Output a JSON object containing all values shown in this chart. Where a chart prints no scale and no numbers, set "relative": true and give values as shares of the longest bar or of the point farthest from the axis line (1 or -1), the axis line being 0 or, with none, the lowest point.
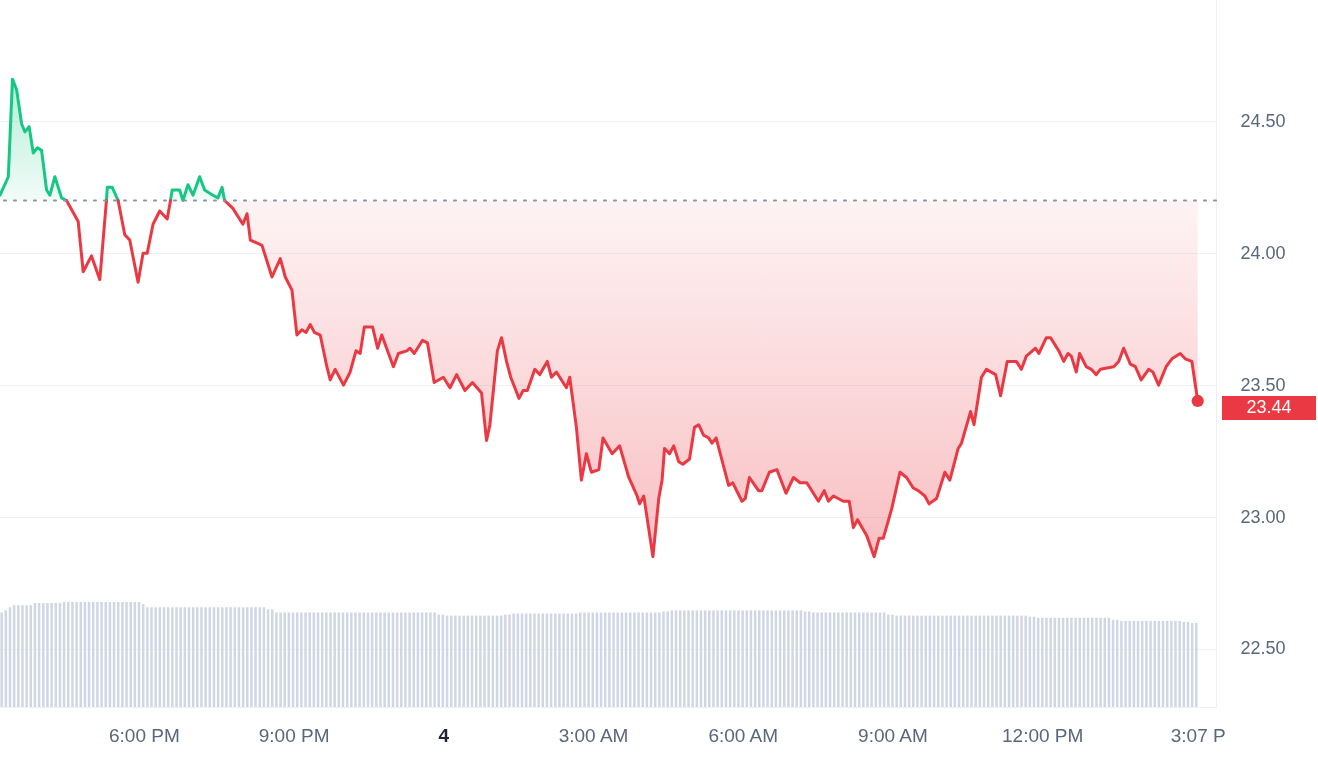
{
  "chart_data": [
    {
      "type": "line",
      "xlim": [
        "--01-03T15:07",
        "--01-04T15:29"
      ],
      "xticks": [
        {
          "value": "--01-03T18:00",
          "label": "6:00 PM"
        },
        {
          "value": "--01-03T21:00",
          "label": "9:00 PM"
        },
        {
          "value": "--01-04T00:00",
          "label": "4"
        },
        {
          "value": "--01-04T03:00",
          "label": "3:00 AM"
        },
        {
          "value": "--01-04T06:00",
          "label": "6:00 AM"
        },
        {
          "value": "--01-04T09:00",
          "label": "9:00 AM"
        },
        {
          "value": "--01-04T12:00",
          "label": "12:00 PM"
        },
        {
          "value": "--01-04T15:07",
          "label": "3:07 P"
        }
      ],
      "ylim": [
        22.28,
        24.96
      ],
      "yticks": [
        {
          "value": 22.5,
          "label": "22.50"
        },
        {
          "value": 23,
          "label": "23.00"
        },
        {
          "value": 23.5,
          "label": "23.50"
        },
        {
          "value": 24,
          "label": "24.00"
        },
        {
          "value": 24.5,
          "label": "24.50"
        }
      ],
      "grid": "y",
      "ref_lines": [
        {
          "axis": "y",
          "value": 24.2,
          "color": "#8a93a6",
          "line_style": "dotted"
        }
      ],
      "annotations": [
        {
          "text": "23.44",
          "x": "--01-04T15:07",
          "y": 23.44
        }
      ],
      "series": [
        {
          "color": "#16c784",
          "x": [
            "--01-03T15:07",
            "--01-03T15:17",
            "--01-03T15:22",
            "--01-03T15:27",
            "--01-03T15:33",
            "--01-03T15:37",
            "--01-03T15:42",
            "--01-03T15:47",
            "--01-03T15:52",
            "--01-03T15:57",
            "--01-03T16:03",
            "--01-03T16:07",
            "--01-03T16:13",
            "--01-03T16:21",
            "--01-03T16:27",
            "--01-03T16:51",
            "--01-03T17:15",
            "--01-03T17:16",
            "--01-03T17:22",
            "--01-03T17:29",
            "--01-03T18:00",
            "--01-03T18:32",
            "--01-03T18:34",
            "--01-03T18:43",
            "--01-03T18:47",
            "--01-03T18:53",
            "--01-03T18:59",
            "--01-03T19:07",
            "--01-03T19:13",
            "--01-03T19:23",
            "--01-03T19:29",
            "--01-03T19:34",
            "--01-03T19:37"
          ],
          "values": [
            24.22,
            24.29,
            24.66,
            24.62,
            24.49,
            24.46,
            24.48,
            24.38,
            24.4,
            24.39,
            24.24,
            24.22,
            24.29,
            24.21,
            24.2,
            null,
            24.2,
            24.25,
            24.25,
            24.2,
            null,
            24.2,
            24.24,
            24.24,
            24.2,
            24.26,
            24.22,
            24.29,
            24.24,
            24.22,
            24.21,
            24.25,
            24.2
          ],
          "lower": [
            24.2,
            24.2,
            24.2,
            24.2,
            24.2,
            24.2,
            24.2,
            24.2,
            24.2,
            24.2,
            24.2,
            24.2,
            24.2,
            24.2,
            24.2,
            null,
            24.2,
            24.2,
            24.2,
            24.2,
            null,
            24.2,
            24.2,
            24.2,
            24.2,
            24.2,
            24.2,
            24.2,
            24.2,
            24.2,
            24.2,
            24.2,
            24.2
          ],
          "upper": [
            24.22,
            24.29,
            24.66,
            24.62,
            24.49,
            24.46,
            24.48,
            24.38,
            24.4,
            24.39,
            24.24,
            24.22,
            24.29,
            24.21,
            24.2,
            null,
            24.2,
            24.25,
            24.25,
            24.2,
            null,
            24.2,
            24.24,
            24.24,
            24.2,
            24.26,
            24.22,
            24.29,
            24.24,
            24.22,
            24.21,
            24.25,
            24.2
          ]
        },
        {
          "color": "#ea3943",
          "x": [
            "--01-03T16:27",
            "--01-03T16:41",
            "--01-03T16:47",
            "--01-03T16:57",
            "--01-03T17:07",
            "--01-03T17:15",
            "--01-03T17:22",
            "--01-03T17:29",
            "--01-03T17:37",
            "--01-03T17:43",
            "--01-03T17:53",
            "--01-03T17:59",
            "--01-03T18:04",
            "--01-03T18:11",
            "--01-03T18:19",
            "--01-03T18:28",
            "--01-03T18:32",
            "--01-03T19:00",
            "--01-03T19:37",
            "--01-03T19:47",
            "--01-03T19:59",
            "--01-03T20:04",
            "--01-03T20:08",
            "--01-03T20:22",
            "--01-03T20:34",
            "--01-03T20:44",
            "--01-03T20:50",
            "--01-03T20:58",
            "--01-03T21:04",
            "--01-03T21:10",
            "--01-03T21:15",
            "--01-03T21:20",
            "--01-03T21:25",
            "--01-03T21:32",
            "--01-03T21:40",
            "--01-03T21:44",
            "--01-03T21:50",
            "--01-03T22:00",
            "--01-03T22:08",
            "--01-03T22:15",
            "--01-03T22:20",
            "--01-03T22:25",
            "--01-03T22:35",
            "--01-03T22:41",
            "--01-03T22:46",
            "--01-03T23:00",
            "--01-03T23:06",
            "--01-03T23:16",
            "--01-03T23:20",
            "--01-03T23:25",
            "--01-03T23:35",
            "--01-03T23:41",
            "--01-03T23:49",
            "--01-04T00:00",
            "--01-04T00:08",
            "--01-04T00:16",
            "--01-04T00:26",
            "--01-04T00:35",
            "--01-04T00:46",
            "--01-04T00:52",
            "--01-04T00:56",
            "--01-04T01:05",
            "--01-04T01:10",
            "--01-04T01:16",
            "--01-04T01:21",
            "--01-04T01:31",
            "--01-04T01:36",
            "--01-04T01:41",
            "--01-04T01:50",
            "--01-04T01:56",
            "--01-04T02:05",
            "--01-04T02:10",
            "--01-04T02:16",
            "--01-04T02:28",
            "--01-04T02:32",
            "--01-04T02:40",
            "--01-04T02:46",
            "--01-04T02:52",
            "--01-04T02:58",
            "--01-04T03:07",
            "--01-04T03:12",
            "--01-04T03:23",
            "--01-04T03:32",
            "--01-04T03:43",
            "--01-04T03:53",
            "--01-04T03:56",
            "--01-04T04:01",
            "--01-04T04:12",
            "--01-04T04:19",
            "--01-04T04:23",
            "--01-04T04:26",
            "--01-04T04:32",
            "--01-04T04:37",
            "--01-04T04:43",
            "--01-04T04:48",
            "--01-04T04:56",
            "--01-04T05:02",
            "--01-04T05:07",
            "--01-04T05:13",
            "--01-04T05:19",
            "--01-04T05:23",
            "--01-04T05:28",
            "--01-04T05:43",
            "--01-04T05:48",
            "--01-04T05:59",
            "--01-04T06:03",
            "--01-04T06:08",
            "--01-04T06:19",
            "--01-04T06:23",
            "--01-04T06:32",
            "--01-04T06:41",
            "--01-04T06:52",
            "--01-04T07:01",
            "--01-04T07:09",
            "--01-04T07:17",
            "--01-04T07:31",
            "--01-04T07:38",
            "--01-04T07:43",
            "--01-04T07:49",
            "--01-04T08:01",
            "--01-04T08:08",
            "--01-04T08:13",
            "--01-04T08:18",
            "--01-04T08:29",
            "--01-04T08:38",
            "--01-04T08:44",
            "--01-04T08:49",
            "--01-04T08:59",
            "--01-04T09:09",
            "--01-04T09:17",
            "--01-04T09:25",
            "--01-04T09:31",
            "--01-04T09:39",
            "--01-04T09:44",
            "--01-04T09:53",
            "--01-04T10:03",
            "--01-04T10:09",
            "--01-04T10:19",
            "--01-04T10:23",
            "--01-04T10:34",
            "--01-04T10:38",
            "--01-04T10:47",
            "--01-04T10:53",
            "--01-04T11:04",
            "--01-04T11:10",
            "--01-04T11:18",
            "--01-04T11:29",
            "--01-04T11:35",
            "--01-04T11:41",
            "--01-04T11:52",
            "--01-04T11:56",
            "--01-04T12:05",
            "--01-04T12:10",
            "--01-04T12:20",
            "--01-04T12:26",
            "--01-04T12:31",
            "--01-04T12:35",
            "--01-04T12:41",
            "--01-04T12:45",
            "--01-04T12:53",
            "--01-04T12:59",
            "--01-04T13:05",
            "--01-04T13:10",
            "--01-04T13:26",
            "--01-04T13:32",
            "--01-04T13:38",
            "--01-04T13:46",
            "--01-04T13:52",
            "--01-04T13:59",
            "--01-04T14:08",
            "--01-04T14:13",
            "--01-04T14:20",
            "--01-04T14:29",
            "--01-04T14:36",
            "--01-04T14:46",
            "--01-04T14:52",
            "--01-04T15:00",
            "--01-04T15:07"
          ],
          "values": [
            24.2,
            24.12,
            23.93,
            23.99,
            23.9,
            24.2,
            null,
            24.2,
            24.07,
            24.05,
            23.89,
            24.0,
            24.0,
            24.11,
            24.16,
            24.13,
            24.2,
            null,
            24.2,
            24.17,
            24.11,
            24.15,
            24.05,
            24.03,
            23.91,
            23.98,
            23.91,
            23.86,
            23.69,
            23.71,
            23.7,
            23.73,
            23.7,
            23.69,
            23.57,
            23.52,
            23.56,
            23.5,
            23.55,
            23.63,
            23.62,
            23.72,
            23.72,
            23.64,
            23.69,
            23.57,
            23.62,
            23.63,
            23.64,
            23.62,
            23.67,
            23.66,
            23.51,
            23.53,
            23.49,
            23.54,
            23.48,
            23.51,
            23.47,
            23.29,
            23.35,
            23.63,
            23.68,
            23.59,
            23.53,
            23.45,
            23.48,
            23.48,
            23.56,
            23.54,
            23.59,
            23.53,
            23.55,
            23.49,
            23.53,
            23.34,
            23.14,
            23.24,
            23.17,
            23.18,
            23.3,
            23.24,
            23.27,
            23.15,
            23.08,
            23.05,
            23.08,
            22.85,
            23.07,
            23.14,
            23.26,
            23.24,
            23.27,
            23.21,
            23.2,
            23.22,
            23.34,
            23.35,
            23.31,
            23.3,
            23.28,
            23.3,
            23.12,
            23.13,
            23.06,
            23.07,
            23.15,
            23.1,
            23.1,
            23.17,
            23.18,
            23.09,
            23.15,
            23.13,
            23.13,
            23.06,
            23.1,
            23.06,
            23.08,
            23.06,
            23.06,
            22.96,
            22.99,
            22.93,
            22.85,
            22.92,
            22.92,
            23.03,
            23.17,
            23.15,
            23.11,
            23.1,
            23.08,
            23.05,
            23.07,
            23.17,
            23.14,
            23.26,
            23.28,
            23.4,
            23.35,
            23.53,
            23.56,
            23.54,
            23.46,
            23.59,
            23.59,
            23.56,
            23.61,
            23.64,
            23.62,
            23.68,
            23.68,
            23.63,
            23.59,
            23.62,
            23.61,
            23.55,
            23.62,
            23.57,
            23.56,
            23.54,
            23.56,
            23.57,
            23.59,
            23.64,
            23.58,
            23.57,
            23.52,
            23.56,
            23.55,
            23.5,
            23.57,
            23.6,
            23.62,
            23.6,
            23.59,
            23.44
          ],
          "lower": [
            null,
            null,
            null,
            null,
            null,
            null,
            null,
            null,
            null,
            null,
            null,
            null,
            null,
            null,
            null,
            null,
            null,
            null,
            24.2,
            24.17,
            24.11,
            24.15,
            24.05,
            24.03,
            23.91,
            23.98,
            23.91,
            23.86,
            23.69,
            23.71,
            23.7,
            23.73,
            23.7,
            23.69,
            23.57,
            23.52,
            23.56,
            23.5,
            23.55,
            23.63,
            23.62,
            23.72,
            23.72,
            23.64,
            23.69,
            23.57,
            23.62,
            23.63,
            23.64,
            23.62,
            23.67,
            23.66,
            23.51,
            23.53,
            23.49,
            23.54,
            23.48,
            23.51,
            23.47,
            23.29,
            23.35,
            23.63,
            23.68,
            23.59,
            23.53,
            23.45,
            23.48,
            23.48,
            23.56,
            23.54,
            23.59,
            23.53,
            23.55,
            23.49,
            23.53,
            23.34,
            23.14,
            23.24,
            23.17,
            23.18,
            23.3,
            23.24,
            23.27,
            23.15,
            23.08,
            23.05,
            23.08,
            22.85,
            23.07,
            23.14,
            23.26,
            23.24,
            23.27,
            23.21,
            23.2,
            23.22,
            23.34,
            23.35,
            23.31,
            23.3,
            23.28,
            23.3,
            23.12,
            23.13,
            23.06,
            23.07,
            23.15,
            23.1,
            23.1,
            23.17,
            23.18,
            23.09,
            23.15,
            23.13,
            23.13,
            23.06,
            23.1,
            23.06,
            23.08,
            23.06,
            23.06,
            22.96,
            22.99,
            22.93,
            22.85,
            22.92,
            22.92,
            23.03,
            23.17,
            23.15,
            23.11,
            23.1,
            23.08,
            23.05,
            23.07,
            23.17,
            23.14,
            23.26,
            23.28,
            23.4,
            23.35,
            23.53,
            23.56,
            23.54,
            23.46,
            23.59,
            23.59,
            23.56,
            23.61,
            23.64,
            23.62,
            23.68,
            23.68,
            23.63,
            23.59,
            23.62,
            23.61,
            23.55,
            23.62,
            23.57,
            23.56,
            23.54,
            23.56,
            23.57,
            23.59,
            23.64,
            23.58,
            23.57,
            23.52,
            23.56,
            23.55,
            23.5,
            23.57,
            23.6,
            23.62,
            23.6,
            23.59,
            23.44
          ],
          "upper": [
            null,
            null,
            null,
            null,
            null,
            null,
            null,
            null,
            null,
            null,
            null,
            null,
            null,
            null,
            null,
            null,
            null,
            null,
            24.2,
            24.2,
            24.2,
            24.2,
            24.2,
            24.2,
            24.2,
            24.2,
            24.2,
            24.2,
            24.2,
            24.2,
            24.2,
            24.2,
            24.2,
            24.2,
            24.2,
            24.2,
            24.2,
            24.2,
            24.2,
            24.2,
            24.2,
            24.2,
            24.2,
            24.2,
            24.2,
            24.2,
            24.2,
            24.2,
            24.2,
            24.2,
            24.2,
            24.2,
            24.2,
            24.2,
            24.2,
            24.2,
            24.2,
            24.2,
            24.2,
            24.2,
            24.2,
            24.2,
            24.2,
            24.2,
            24.2,
            24.2,
            24.2,
            24.2,
            24.2,
            24.2,
            24.2,
            24.2,
            24.2,
            24.2,
            24.2,
            24.2,
            24.2,
            24.2,
            24.2,
            24.2,
            24.2,
            24.2,
            24.2,
            24.2,
            24.2,
            24.2,
            24.2,
            24.2,
            24.2,
            24.2,
            24.2,
            24.2,
            24.2,
            24.2,
            24.2,
            24.2,
            24.2,
            24.2,
            24.2,
            24.2,
            24.2,
            24.2,
            24.2,
            24.2,
            24.2,
            24.2,
            24.2,
            24.2,
            24.2,
            24.2,
            24.2,
            24.2,
            24.2,
            24.2,
            24.2,
            24.2,
            24.2,
            24.2,
            24.2,
            24.2,
            24.2,
            24.2,
            24.2,
            24.2,
            24.2,
            24.2,
            24.2,
            24.2,
            24.2,
            24.2,
            24.2,
            24.2,
            24.2,
            24.2,
            24.2,
            24.2,
            24.2,
            24.2,
            24.2,
            24.2,
            24.2,
            24.2,
            24.2,
            24.2,
            24.2,
            24.2,
            24.2,
            24.2,
            24.2,
            24.2,
            24.2,
            24.2,
            24.2,
            24.2,
            24.2,
            24.2,
            24.2,
            24.2,
            24.2,
            24.2,
            24.2,
            24.2,
            24.2,
            24.2,
            24.2,
            24.2,
            24.2,
            24.2,
            24.2,
            24.2,
            24.2,
            24.2,
            24.2,
            24.2,
            24.2,
            24.2,
            24.2,
            24.2
          ]
        }
      ]
    },
    {
      "type": "bar",
      "relative": true,
      "color": "#cfd6e4",
      "categories": [
        null,
        null,
        null,
        null,
        null,
        null,
        null,
        null,
        null,
        null,
        null,
        null,
        null,
        null,
        null,
        null,
        null,
        null,
        null,
        null,
        null,
        null,
        null,
        null,
        null,
        null,
        null,
        null,
        null,
        null,
        null,
        null,
        null,
        null,
        null,
        null,
        null,
        null,
        null,
        null,
        null,
        null,
        null,
        null,
        null,
        null,
        null,
        null,
        null,
        null,
        null,
        null,
        null,
        null,
        null,
        null,
        null,
        null,
        null,
        null,
        null,
        null,
        null,
        null,
        null,
        null,
        null,
        null,
        null,
        null,
        null,
        null,
        null,
        null,
        null,
        null,
        null,
        null,
        null,
        null,
        null,
        null,
        null,
        null,
        null,
        null,
        null,
        null,
        null,
        null,
        null,
        null,
        null,
        null,
        null,
        null,
        null,
        null,
        null,
        null,
        null,
        null,
        null,
        null,
        null,
        null,
        null,
        null,
        null,
        null,
        null,
        null,
        null,
        null,
        null,
        null,
        null,
        null,
        null,
        null,
        null,
        null,
        null,
        null,
        null,
        null,
        null,
        null,
        null,
        null,
        null,
        null,
        null,
        null,
        null,
        null,
        null,
        null,
        null,
        null,
        null,
        null,
        null,
        null,
        null,
        null,
        null,
        null,
        null,
        null,
        null,
        null,
        null,
        null,
        null,
        null,
        null,
        null,
        null,
        null,
        null,
        null,
        null,
        null,
        null,
        null,
        null,
        null,
        null,
        null,
        null,
        null,
        null,
        null,
        null,
        null,
        null,
        null,
        null,
        null,
        null,
        null,
        null,
        null,
        null,
        null,
        null,
        null,
        null,
        null,
        null,
        null,
        null,
        null,
        null,
        null,
        null,
        null,
        null,
        null,
        null,
        null,
        null,
        null,
        null,
        null,
        null,
        null,
        null,
        null,
        null,
        null,
        null,
        null,
        null,
        null,
        null,
        null,
        null,
        null,
        null,
        null,
        null,
        null,
        null,
        null,
        null,
        null,
        null,
        null,
        null,
        null,
        null,
        null,
        null,
        null,
        null,
        null,
        null,
        null,
        null,
        null,
        null,
        null,
        null,
        null,
        null,
        null,
        null,
        null,
        null,
        null,
        null,
        null,
        null,
        null,
        null,
        null,
        null,
        null,
        null,
        null,
        null,
        null,
        null,
        null,
        null,
        null,
        null,
        null,
        null,
        null,
        null,
        null,
        null,
        null,
        null,
        null,
        null,
        null,
        null,
        null,
        null,
        null,
        null,
        null,
        null,
        null
      ],
      "values": [
        0.9,
        0.92,
        0.95,
        0.97,
        0.97,
        0.97,
        0.97,
        0.97,
        0.99,
        0.99,
        0.99,
        0.99,
        0.99,
        0.99,
        0.99,
        1,
        1,
        1,
        1,
        1,
        1,
        1,
        1,
        1,
        1,
        1,
        1,
        1,
        1,
        1,
        1,
        1,
        1,
        1,
        0.98,
        0.95,
        0.95,
        0.95,
        0.95,
        0.95,
        0.95,
        0.95,
        0.95,
        0.95,
        0.95,
        0.95,
        0.95,
        0.95,
        0.95,
        0.95,
        0.95,
        0.95,
        0.95,
        0.95,
        0.95,
        0.95,
        0.95,
        0.95,
        0.95,
        0.95,
        0.95,
        0.95,
        0.95,
        0.95,
        0.93,
        0.93,
        0.9,
        0.9,
        0.9,
        0.9,
        0.9,
        0.9,
        0.9,
        0.9,
        0.9,
        0.9,
        0.9,
        0.9,
        0.9,
        0.9,
        0.9,
        0.9,
        0.9,
        0.9,
        0.9,
        0.9,
        0.9,
        0.9,
        0.9,
        0.9,
        0.9,
        0.9,
        0.9,
        0.9,
        0.9,
        0.9,
        0.9,
        0.9,
        0.9,
        0.9,
        0.9,
        0.9,
        0.9,
        0.9,
        0.9,
        0.88,
        0.88,
        0.87,
        0.87,
        0.87,
        0.87,
        0.87,
        0.87,
        0.87,
        0.87,
        0.87,
        0.87,
        0.87,
        0.87,
        0.87,
        0.87,
        0.88,
        0.88,
        0.89,
        0.89,
        0.89,
        0.89,
        0.89,
        0.89,
        0.89,
        0.89,
        0.89,
        0.89,
        0.89,
        0.89,
        0.89,
        0.89,
        0.89,
        0.89,
        0.9,
        0.9,
        0.9,
        0.9,
        0.9,
        0.9,
        0.9,
        0.9,
        0.9,
        0.9,
        0.9,
        0.9,
        0.9,
        0.9,
        0.9,
        0.9,
        0.9,
        0.9,
        0.9,
        0.9,
        0.91,
        0.91,
        0.92,
        0.92,
        0.92,
        0.92,
        0.92,
        0.92,
        0.92,
        0.92,
        0.92,
        0.92,
        0.92,
        0.92,
        0.92,
        0.92,
        0.92,
        0.92,
        0.92,
        0.92,
        0.92,
        0.92,
        0.92,
        0.92,
        0.92,
        0.92,
        0.92,
        0.92,
        0.92,
        0.92,
        0.92,
        0.92,
        0.92,
        0.92,
        0.91,
        0.91,
        0.9,
        0.9,
        0.9,
        0.9,
        0.9,
        0.9,
        0.9,
        0.9,
        0.9,
        0.9,
        0.9,
        0.9,
        0.9,
        0.9,
        0.9,
        0.9,
        0.9,
        0.9,
        0.88,
        0.88,
        0.87,
        0.87,
        0.87,
        0.87,
        0.87,
        0.87,
        0.87,
        0.87,
        0.87,
        0.87,
        0.87,
        0.87,
        0.87,
        0.87,
        0.87,
        0.87,
        0.87,
        0.87,
        0.87,
        0.87,
        0.87,
        0.87,
        0.87,
        0.87,
        0.87,
        0.87,
        0.87,
        0.87,
        0.87,
        0.87,
        0.87,
        0.87,
        0.86,
        0.86,
        0.85,
        0.85,
        0.85,
        0.85,
        0.85,
        0.85,
        0.85,
        0.85,
        0.85,
        0.85,
        0.85,
        0.85,
        0.85,
        0.85,
        0.85,
        0.85,
        0.85,
        0.85,
        0.83,
        0.83,
        0.82,
        0.82,
        0.82,
        0.82,
        0.82,
        0.82,
        0.82,
        0.82,
        0.82,
        0.82,
        0.82,
        0.82,
        0.82,
        0.82,
        0.82,
        0.81,
        0.81,
        0.8,
        0.8
      ]
    }
  ]
}
